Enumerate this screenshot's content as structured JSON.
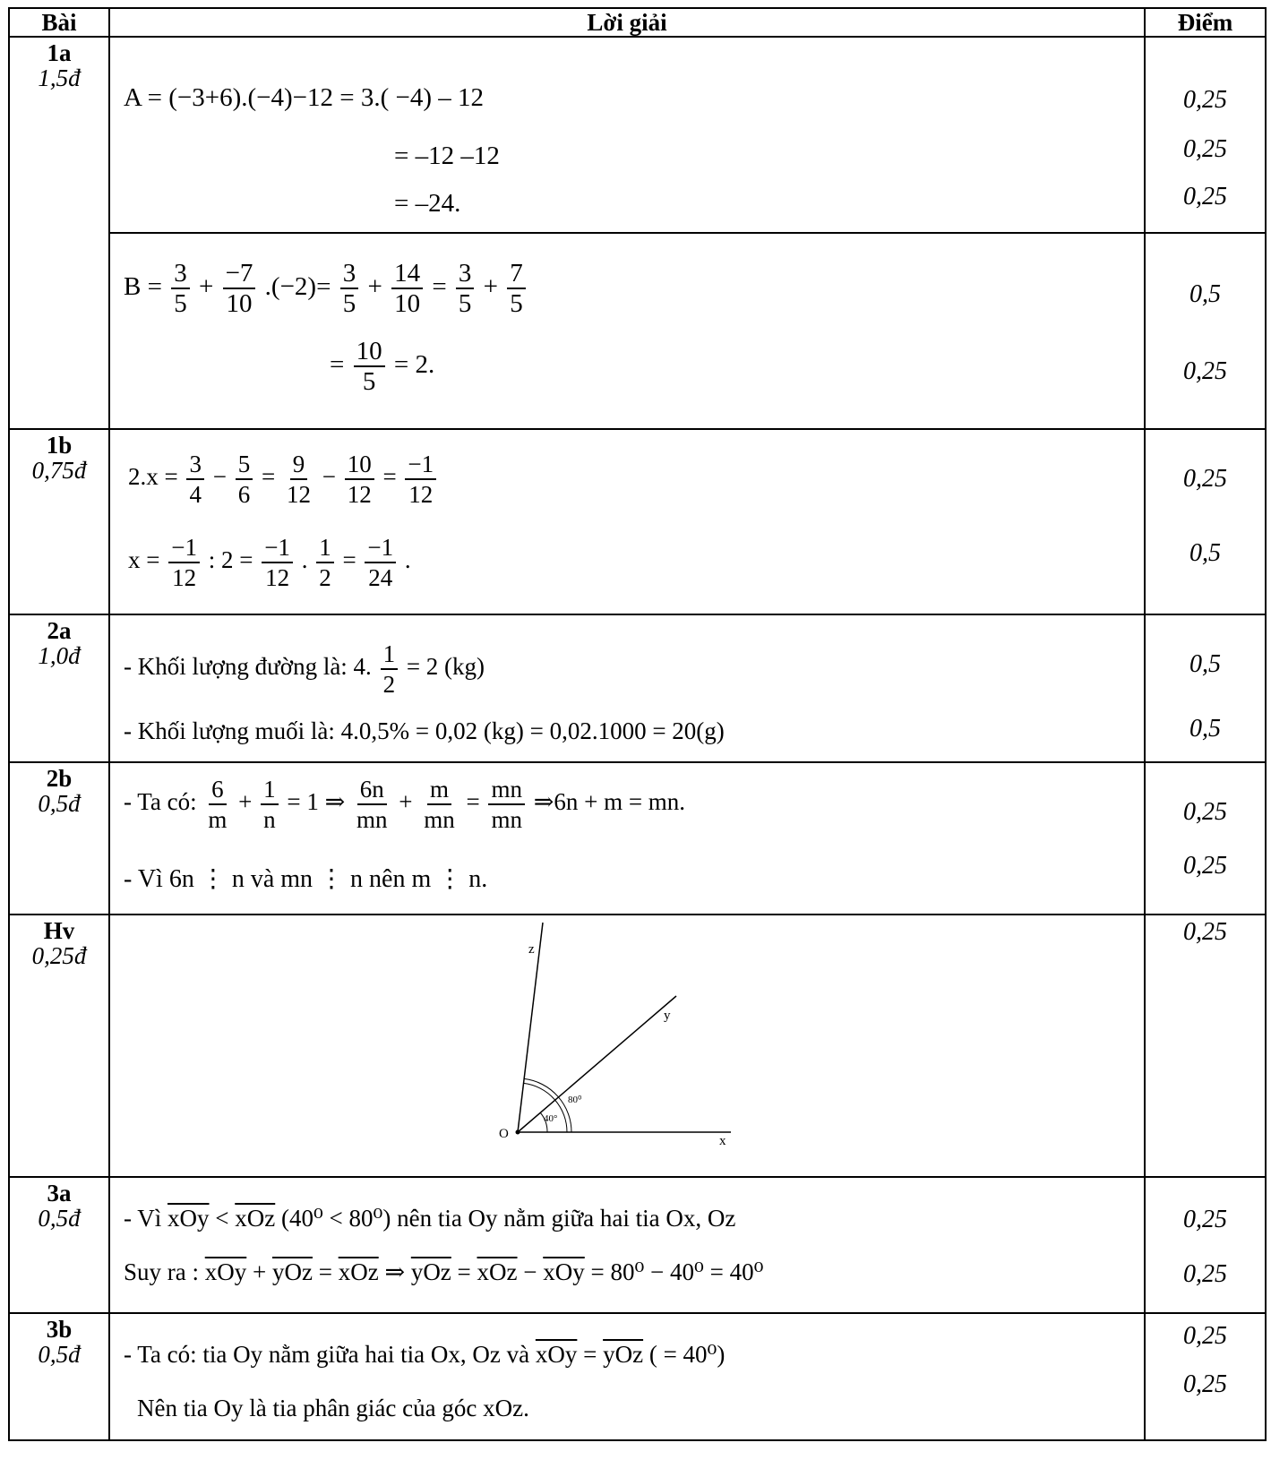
{
  "header": {
    "col_bai": "Bài",
    "col_loigiai": "Lời giải",
    "col_diem": "Điểm"
  },
  "rows": [
    {
      "bai": "1a",
      "pts": "1,5đ",
      "lines": [
        "A = (−3+6).(−4)−12 = 3.( −4) – 12",
        "= –12 –12",
        "= –24."
      ],
      "scores": [
        "0,25",
        "0,25",
        "0,25"
      ],
      "lines2": [
        "B = ",
        "+",
        ".(−2)=",
        "+",
        "=",
        "+",
        "=",
        "= 2."
      ],
      "fracs": {
        "f1n": "3",
        "f1d": "5",
        "f2n": "−7",
        "f2d": "10",
        "f3n": "3",
        "f3d": "5",
        "f4n": "14",
        "f4d": "10",
        "f5n": "3",
        "f5d": "5",
        "f6n": "7",
        "f6d": "5",
        "f7n": "10",
        "f7d": "5"
      },
      "scores2": [
        "0,5",
        "0,25"
      ]
    },
    {
      "bai": "1b",
      "pts": "0,75đ",
      "text": {
        "l1a": "2.x =",
        "l1b": "−",
        "l1c": "=",
        "l1d": "−",
        "l1e": "=",
        "l2a": "x =",
        "l2b": ": 2 =",
        "l2c": ".",
        "l2d": "=",
        "l2e": "."
      },
      "fracs": {
        "a": "3",
        "b": "4",
        "c": "5",
        "d": "6",
        "e": "9",
        "f": "12",
        "g": "10",
        "h": "12",
        "i": "−1",
        "j": "12",
        "k": "−1",
        "l": "12",
        "m": "−1",
        "n": "12",
        "o": "1",
        "p": "2",
        "q": "−1",
        "r": "24"
      },
      "scores": [
        "0,25",
        "0,5"
      ]
    },
    {
      "bai": "2a",
      "pts": "1,0đ",
      "l1a": "- Khối lượng đường là:  4.",
      "l1b": "= 2 (kg)",
      "fn": "1",
      "fd": "2",
      "l2": "- Khối lượng muối là:  4.0,5% = 0,02 (kg) = 0,02.1000 = 20(g)",
      "scores": [
        "0,5",
        "0,5"
      ]
    },
    {
      "bai": "2b",
      "pts": "0,5đ",
      "l1a": "- Ta có:",
      "l1b": "+",
      "l1c": "= 1  ⇒",
      "l1d": "+",
      "l1e": "=",
      "l1f": "⇒6n + m = mn.",
      "fracs": {
        "a": "6",
        "b": "m",
        "c": "1",
        "d": "n",
        "e": "6n",
        "f": "mn",
        "g": "m",
        "h": "mn",
        "i": "mn",
        "j": "mn"
      },
      "l2": "- Vì 6n ⋮ n và mn ⋮ n nên m ⋮ n.",
      "scores": [
        "0,25",
        "0,25"
      ]
    },
    {
      "bai": "Hv",
      "pts": "0,25đ",
      "figure": {
        "z": "z",
        "y": "y",
        "x": "x",
        "o": "O",
        "a80": "80⁰",
        "a40": "40°"
      },
      "scores": [
        "0,25"
      ]
    },
    {
      "bai": "3a",
      "pts": "0,5đ",
      "l1a": "- Vì ",
      "l1b": "xOy",
      "l1c": " < ",
      "l1d": "xOz",
      "l1e": " (40⁰ < 80⁰) nên tia Oy nằm giữa hai tia Ox, Oz",
      "l2a": "Suy ra : ",
      "l2b": "xOy",
      "l2c": " + ",
      "l2d": "yOz",
      "l2e": " = ",
      "l2f": "xOz",
      "l2g": "  ⇒ ",
      "l2h": "yOz",
      "l2i": " = ",
      "l2j": "xOz",
      "l2k": " − ",
      "l2l": "xOy",
      "l2m": " = 80⁰ − 40⁰ = 40⁰",
      "scores": [
        "0,25",
        "0,25"
      ]
    },
    {
      "bai": "3b",
      "pts": "0,5đ",
      "l1a": "- Ta có:  tia Oy nằm giữa hai tia Ox, Oz và ",
      "l1b": "xOy",
      "l1c": " = ",
      "l1d": "yOz",
      "l1e": "  ( = 40⁰)",
      "l2": "Nên tia Oy là tia phân giác của góc xOz.",
      "scores": [
        "0,25",
        "0,25"
      ]
    }
  ]
}
